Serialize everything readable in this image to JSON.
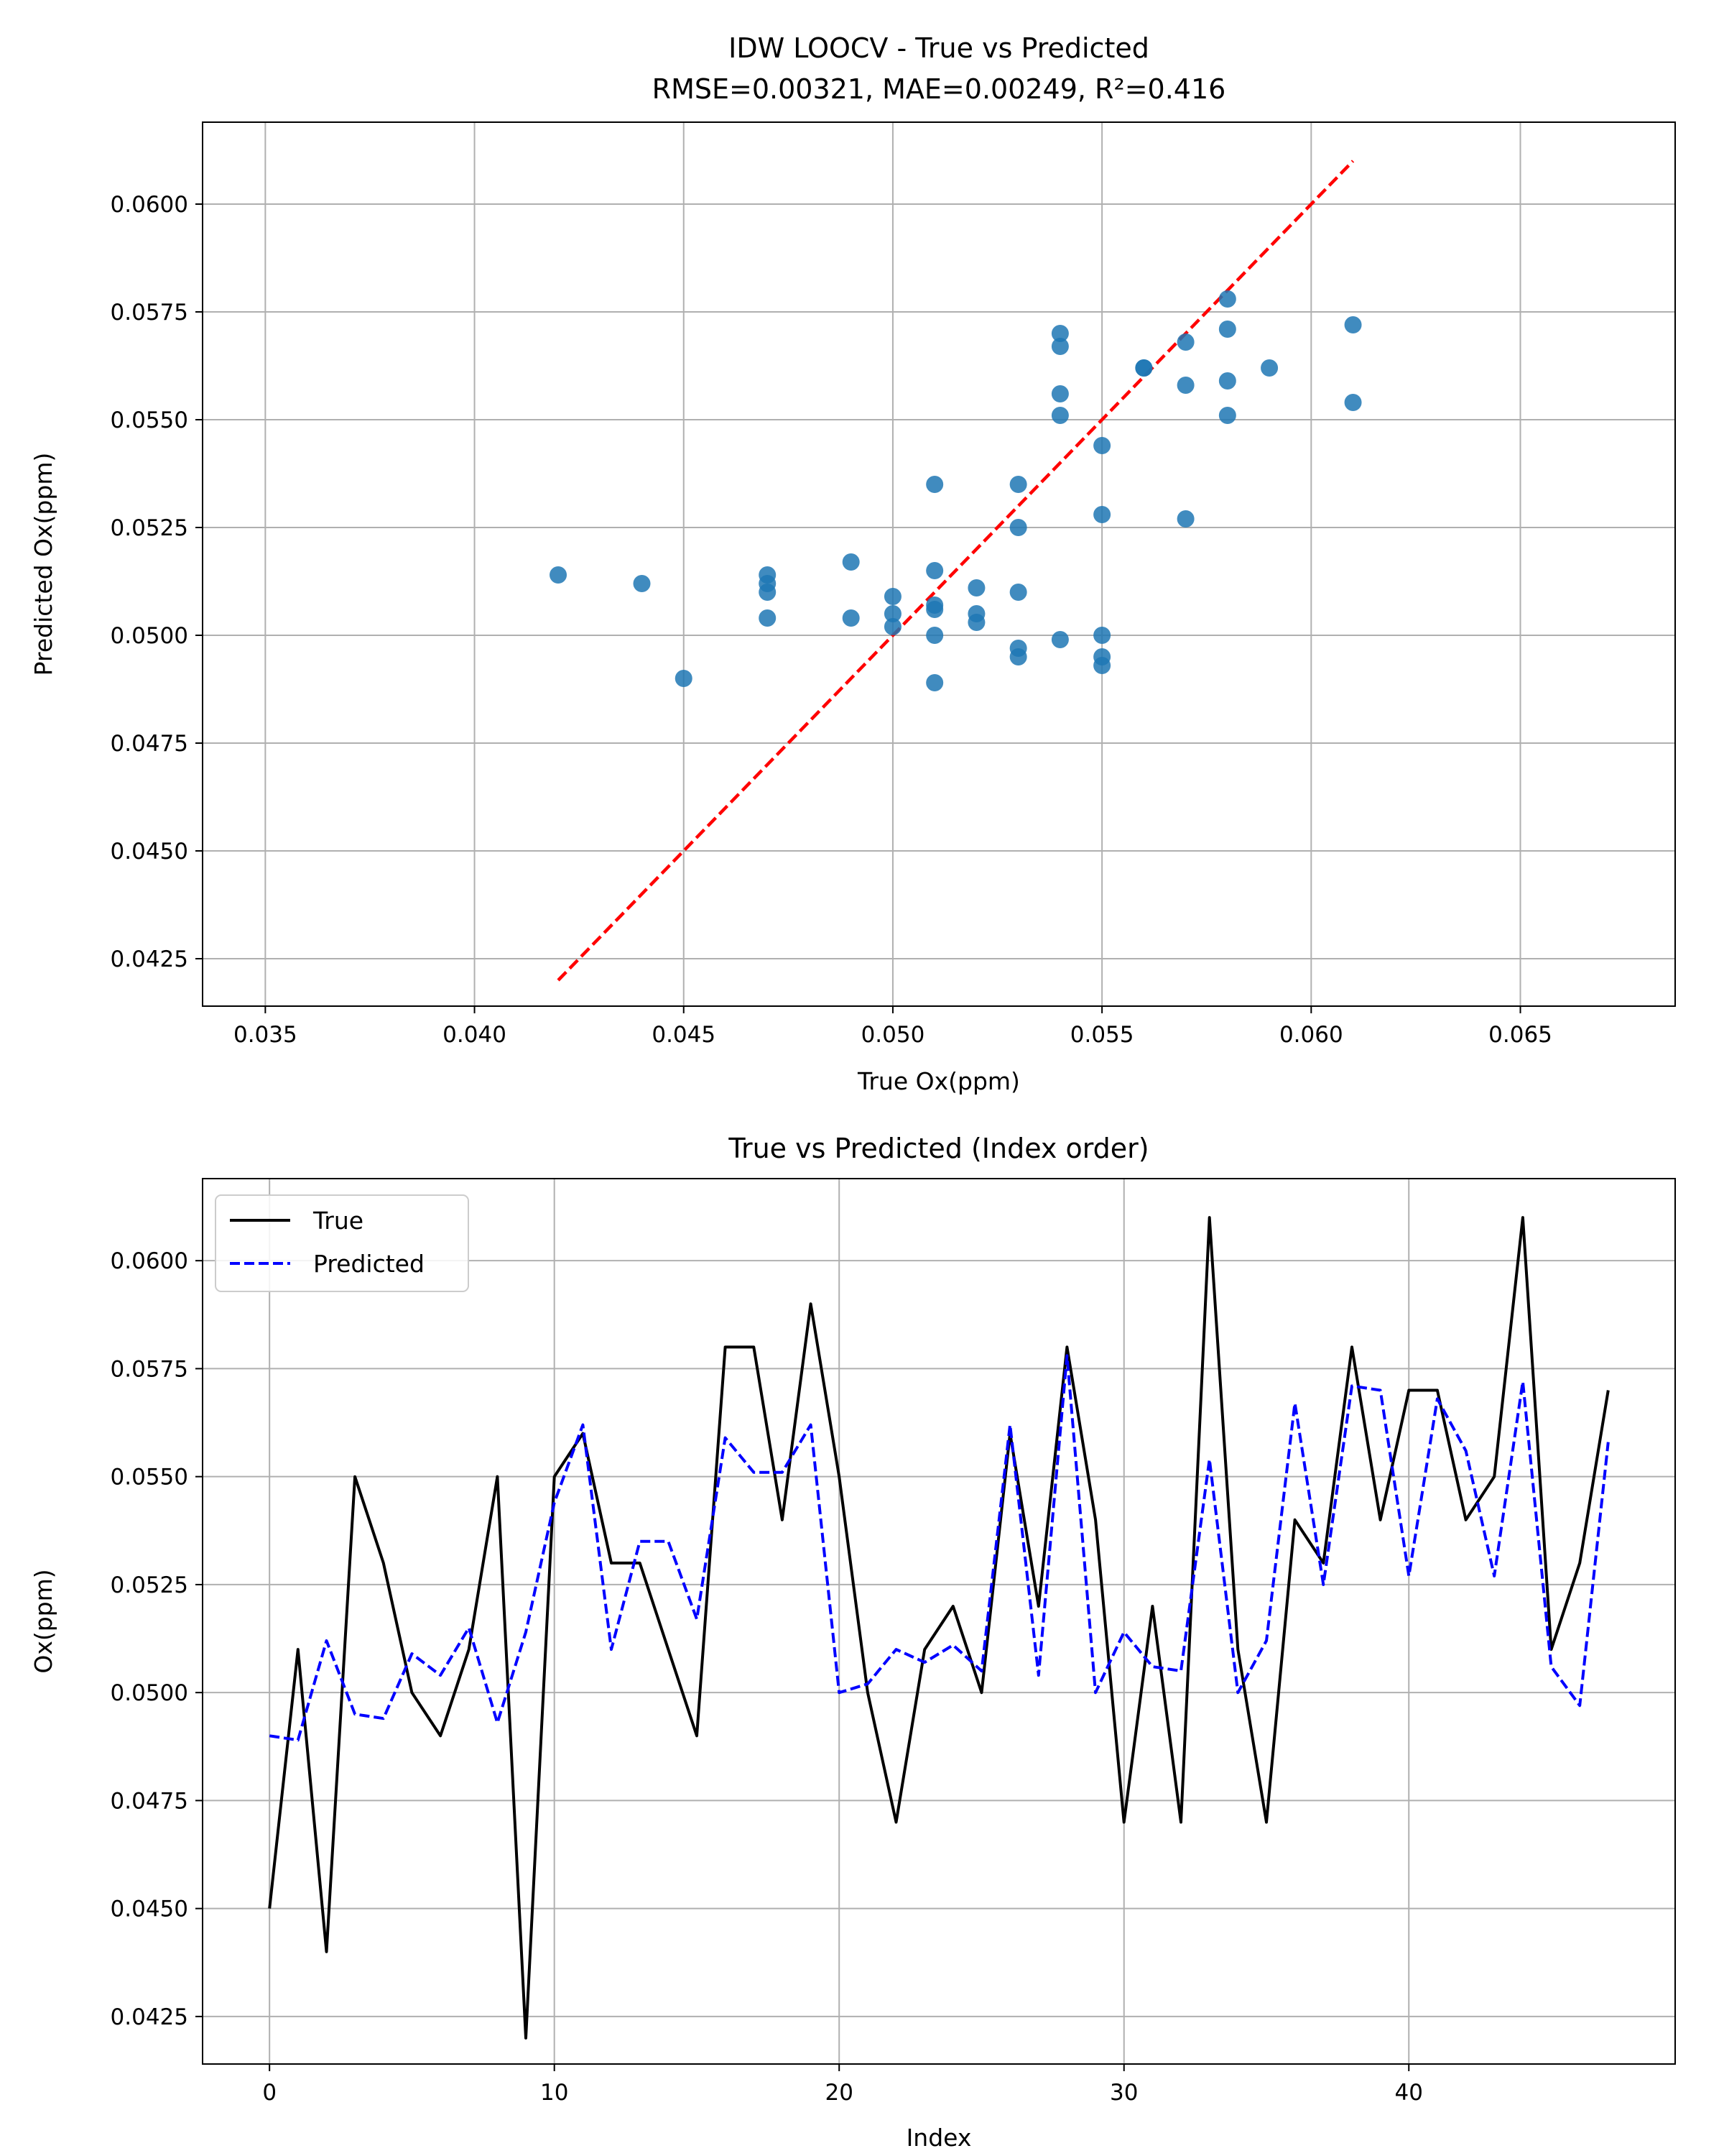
{
  "chart_data": [
    {
      "type": "scatter",
      "title": "IDW LOOCV - True vs Predicted",
      "subtitle": "RMSE=0.00321, MAE=0.00249, R²=0.416",
      "xlabel": "True Ox(ppm)",
      "ylabel": "Predicted Ox(ppm)",
      "xlim": [
        0.0335,
        0.0687
      ],
      "ylim": [
        0.0414,
        0.0619
      ],
      "xticks": [
        "0.035",
        "0.040",
        "0.045",
        "0.050",
        "0.055",
        "0.060",
        "0.065"
      ],
      "yticks": [
        "0.0425",
        "0.0450",
        "0.0475",
        "0.0500",
        "0.0525",
        "0.0550",
        "0.0575",
        "0.0600"
      ],
      "grid": true,
      "point_color": "#1f77b4",
      "reference_line": {
        "x": [
          0.042,
          0.061
        ],
        "y": [
          0.042,
          0.061
        ],
        "color": "#ff0000",
        "style": "dashed"
      },
      "points": [
        {
          "x": 0.042,
          "y": 0.0514
        },
        {
          "x": 0.044,
          "y": 0.0512
        },
        {
          "x": 0.045,
          "y": 0.049
        },
        {
          "x": 0.047,
          "y": 0.0514
        },
        {
          "x": 0.047,
          "y": 0.0512
        },
        {
          "x": 0.047,
          "y": 0.051
        },
        {
          "x": 0.047,
          "y": 0.0504
        },
        {
          "x": 0.049,
          "y": 0.0517
        },
        {
          "x": 0.049,
          "y": 0.0504
        },
        {
          "x": 0.05,
          "y": 0.0509
        },
        {
          "x": 0.05,
          "y": 0.0505
        },
        {
          "x": 0.05,
          "y": 0.0502
        },
        {
          "x": 0.051,
          "y": 0.0535
        },
        {
          "x": 0.051,
          "y": 0.0515
        },
        {
          "x": 0.051,
          "y": 0.0507
        },
        {
          "x": 0.051,
          "y": 0.0506
        },
        {
          "x": 0.051,
          "y": 0.05
        },
        {
          "x": 0.051,
          "y": 0.0489
        },
        {
          "x": 0.052,
          "y": 0.0511
        },
        {
          "x": 0.052,
          "y": 0.0505
        },
        {
          "x": 0.052,
          "y": 0.0503
        },
        {
          "x": 0.053,
          "y": 0.0535
        },
        {
          "x": 0.053,
          "y": 0.0525
        },
        {
          "x": 0.053,
          "y": 0.051
        },
        {
          "x": 0.053,
          "y": 0.0497
        },
        {
          "x": 0.053,
          "y": 0.0495
        },
        {
          "x": 0.054,
          "y": 0.057
        },
        {
          "x": 0.054,
          "y": 0.0567
        },
        {
          "x": 0.054,
          "y": 0.0556
        },
        {
          "x": 0.054,
          "y": 0.0551
        },
        {
          "x": 0.054,
          "y": 0.0499
        },
        {
          "x": 0.055,
          "y": 0.0544
        },
        {
          "x": 0.055,
          "y": 0.0528
        },
        {
          "x": 0.055,
          "y": 0.05
        },
        {
          "x": 0.055,
          "y": 0.0495
        },
        {
          "x": 0.055,
          "y": 0.0493
        },
        {
          "x": 0.056,
          "y": 0.0562
        },
        {
          "x": 0.056,
          "y": 0.0562
        },
        {
          "x": 0.057,
          "y": 0.0568
        },
        {
          "x": 0.057,
          "y": 0.0558
        },
        {
          "x": 0.057,
          "y": 0.0527
        },
        {
          "x": 0.058,
          "y": 0.0578
        },
        {
          "x": 0.058,
          "y": 0.0571
        },
        {
          "x": 0.058,
          "y": 0.0559
        },
        {
          "x": 0.058,
          "y": 0.0551
        },
        {
          "x": 0.059,
          "y": 0.0562
        },
        {
          "x": 0.061,
          "y": 0.0572
        },
        {
          "x": 0.061,
          "y": 0.0554
        }
      ]
    },
    {
      "type": "line",
      "title": "True vs Predicted (Index order)",
      "xlabel": "Index",
      "ylabel": "Ox(ppm)",
      "xlim": [
        -2.35,
        49.35
      ],
      "ylim": [
        0.0414,
        0.0619
      ],
      "xticks": [
        "0",
        "10",
        "20",
        "30",
        "40"
      ],
      "yticks": [
        "0.0425",
        "0.0450",
        "0.0475",
        "0.0500",
        "0.0525",
        "0.0550",
        "0.0575",
        "0.0600"
      ],
      "grid": true,
      "legend_position": "top-left",
      "series": [
        {
          "name": "True",
          "color": "#000000",
          "style": "solid",
          "values": [
            0.045,
            0.051,
            0.044,
            0.055,
            0.053,
            0.05,
            0.049,
            0.051,
            0.055,
            0.042,
            0.055,
            0.056,
            0.053,
            0.053,
            0.051,
            0.049,
            0.058,
            0.058,
            0.054,
            0.059,
            0.055,
            0.05,
            0.047,
            0.051,
            0.052,
            0.05,
            0.056,
            0.052,
            0.058,
            0.054,
            0.047,
            0.052,
            0.047,
            0.061,
            0.051,
            0.047,
            0.054,
            0.053,
            0.058,
            0.054,
            0.057,
            0.057,
            0.054,
            0.055,
            0.061,
            0.051,
            0.053,
            0.057
          ]
        },
        {
          "name": "Predicted",
          "color": "#0000ff",
          "style": "dashed",
          "values": [
            0.049,
            0.0489,
            0.0512,
            0.0495,
            0.0494,
            0.0509,
            0.0504,
            0.0515,
            0.0493,
            0.0514,
            0.0544,
            0.0562,
            0.051,
            0.0535,
            0.0535,
            0.0517,
            0.0559,
            0.0551,
            0.0551,
            0.0562,
            0.05,
            0.0502,
            0.051,
            0.0507,
            0.0511,
            0.0505,
            0.0562,
            0.0504,
            0.0578,
            0.05,
            0.0514,
            0.0506,
            0.0505,
            0.0554,
            0.05,
            0.0512,
            0.0567,
            0.0525,
            0.0571,
            0.057,
            0.0527,
            0.0568,
            0.0556,
            0.0527,
            0.0572,
            0.0506,
            0.0497,
            0.0558
          ]
        }
      ]
    }
  ]
}
